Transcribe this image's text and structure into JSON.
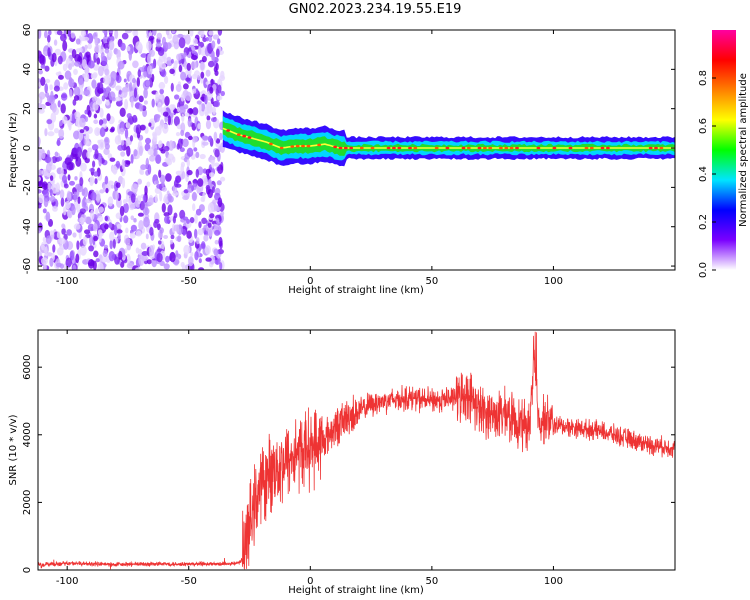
{
  "title": "GN02.2023.234.19.55.E19",
  "chart_data": [
    {
      "type": "heatmap",
      "xlabel": "Height of straight line (km)",
      "ylabel": "Frequency (Hz)",
      "xlim": [
        -112,
        150
      ],
      "ylim": [
        -62,
        60
      ],
      "x_ticks": [
        -100,
        -50,
        0,
        50,
        100
      ],
      "y_ticks": [
        -60,
        -40,
        -20,
        0,
        20,
        40,
        60
      ],
      "noise_region_x": [
        -112,
        -36
      ],
      "signal_track": {
        "x": [
          -36,
          -30,
          -24,
          -18,
          -12,
          -6,
          0,
          6,
          12,
          20,
          40,
          60,
          80,
          100,
          120,
          150
        ],
        "frequency": [
          10,
          7,
          5,
          3,
          0,
          1,
          1,
          2,
          0,
          0,
          0,
          0,
          0,
          0,
          0,
          0
        ]
      },
      "colorbar": {
        "label": "Normalized spectral amplitude",
        "ticks": [
          0.0,
          0.2,
          0.4,
          0.6,
          0.8
        ],
        "range": [
          0,
          1
        ],
        "colors": [
          "#ffffff",
          "#7a00ff",
          "#0000ff",
          "#00e5ff",
          "#00ff00",
          "#ffff00",
          "#ff8000",
          "#ff0000",
          "#ff00a0"
        ]
      }
    },
    {
      "type": "line",
      "xlabel": "Height of straight line (km)",
      "ylabel": "SNR (10 * v/v)",
      "xlim": [
        -112,
        150
      ],
      "ylim": [
        0,
        7100
      ],
      "x_ticks": [
        -100,
        -50,
        0,
        50,
        100
      ],
      "y_ticks": [
        0,
        2000,
        4000,
        6000
      ],
      "color": "#ee3333",
      "series": [
        {
          "x": [
            -112,
            -100,
            -80,
            -60,
            -40,
            -30,
            -28,
            -25,
            -22,
            -20,
            -15,
            -10,
            -5,
            0,
            5,
            10,
            15,
            20,
            25,
            30,
            40,
            50,
            60,
            65,
            70,
            75,
            80,
            85,
            90,
            92,
            94,
            96,
            100,
            110,
            120,
            130,
            140,
            150
          ],
          "values": [
            150,
            200,
            160,
            180,
            170,
            200,
            300,
            1300,
            2200,
            2500,
            3000,
            3200,
            3500,
            3600,
            3800,
            4200,
            4500,
            4700,
            4900,
            5000,
            5100,
            5000,
            5100,
            5200,
            4700,
            4600,
            4600,
            4400,
            4200,
            6200,
            4400,
            4500,
            4300,
            4200,
            4100,
            3900,
            3700,
            3600
          ]
        }
      ]
    }
  ]
}
